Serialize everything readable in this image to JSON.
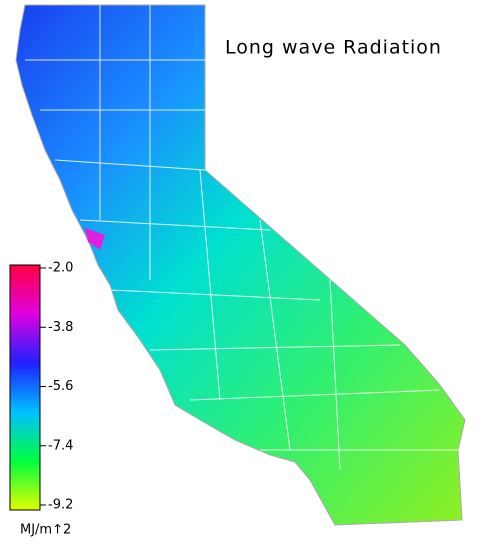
{
  "title": "Long wave Radiation",
  "legend": {
    "ticks": [
      {
        "value": -2.0,
        "label": "-2.0"
      },
      {
        "value": -3.8,
        "label": "-3.8"
      },
      {
        "value": -5.6,
        "label": "-5.6"
      },
      {
        "value": -7.4,
        "label": "-7.4"
      },
      {
        "value": -9.2,
        "label": "-9.2"
      }
    ],
    "colors": [
      "#ff0040",
      "#e000e0",
      "#2020ff",
      "#00c0ff",
      "#00ff40",
      "#e0ff00"
    ],
    "unit": "MJ/m↑2"
  }
}
